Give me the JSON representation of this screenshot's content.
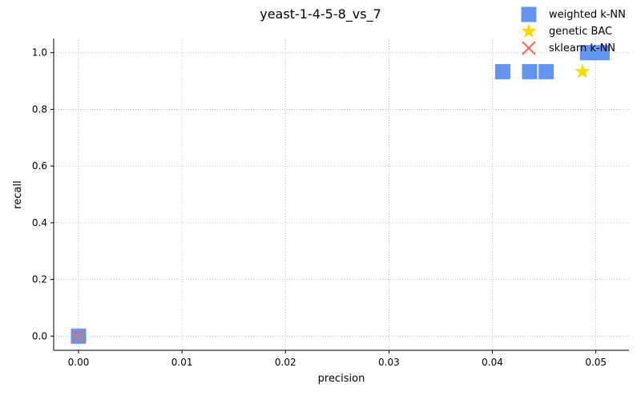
{
  "chart_data": {
    "type": "scatter",
    "title": "yeast-1-4-5-8_vs_7",
    "xlabel": "precision",
    "ylabel": "recall",
    "xlim": [
      -0.0024,
      0.0532
    ],
    "ylim": [
      -0.05,
      1.05
    ],
    "xticks": [
      0.0,
      0.01,
      0.02,
      0.03,
      0.04,
      0.05
    ],
    "xtick_labels": [
      "0.00",
      "0.01",
      "0.02",
      "0.03",
      "0.04",
      "0.05"
    ],
    "yticks": [
      0.0,
      0.2,
      0.4,
      0.6,
      0.8,
      1.0
    ],
    "ytick_labels": [
      "0.0",
      "0.2",
      "0.4",
      "0.6",
      "0.8",
      "1.0"
    ],
    "grid": true,
    "legend_position": "top-right",
    "series": [
      {
        "name": "weighted k-NN",
        "marker": "square",
        "color": "#6495ED",
        "points": [
          {
            "x": 0.0,
            "y": 0.0
          },
          {
            "x": 0.041,
            "y": 0.933
          },
          {
            "x": 0.0436,
            "y": 0.933
          },
          {
            "x": 0.0452,
            "y": 0.933
          },
          {
            "x": 0.0492,
            "y": 1.0
          },
          {
            "x": 0.0506,
            "y": 1.0
          }
        ]
      },
      {
        "name": "genetic BAC",
        "marker": "star",
        "color": "#FFD700",
        "points": [
          {
            "x": 0.0487,
            "y": 0.933
          }
        ]
      },
      {
        "name": "sklearn k-NN",
        "marker": "x",
        "color": "#F4694C",
        "points": [
          {
            "x": 0.0,
            "y": 0.0
          }
        ]
      }
    ]
  }
}
